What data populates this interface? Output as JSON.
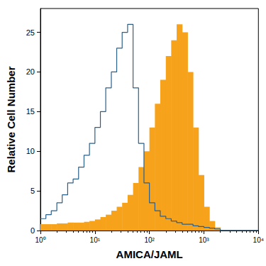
{
  "chart_data": {
    "type": "histogram",
    "x_label": "AMICA/JAML",
    "y_label": "Relative Cell Number",
    "log": "x",
    "bins": [
      1,
      1.26,
      1.58,
      2,
      2.51,
      3.16,
      3.98,
      5.01,
      6.31,
      7.94,
      10,
      12.6,
      15.8,
      20,
      25.1,
      31.6,
      39.8,
      50.1,
      63.1,
      79.4,
      100,
      126,
      158,
      200,
      251,
      316,
      398,
      501,
      631,
      794,
      1000,
      1260,
      1580,
      2000,
      2510,
      3160,
      3980,
      5010,
      6310,
      7940,
      10000
    ],
    "series": [
      {
        "type": "bar",
        "color": "#f7a21b",
        "values": [
          0.8,
          0.8,
          0.8,
          0.9,
          0.9,
          1,
          1,
          1,
          1.1,
          1.2,
          1.4,
          1.7,
          2,
          2.5,
          3,
          3.5,
          4.5,
          6,
          8,
          10,
          13,
          16,
          19,
          22,
          24,
          26,
          25,
          20,
          13,
          7,
          3,
          1.2,
          0.4,
          0,
          0,
          0,
          0,
          0,
          0,
          0
        ]
      },
      {
        "type": "line",
        "color": "#2a5f8a",
        "values": [
          1.5,
          2,
          2.5,
          3.5,
          4.5,
          6,
          6.5,
          8,
          9.5,
          11,
          13,
          15,
          18,
          20,
          23,
          25,
          26,
          18,
          11,
          6,
          3.5,
          2.5,
          1.8,
          1.5,
          1.2,
          1,
          0.8,
          0.8,
          0.6,
          0.5,
          0.4,
          0.3,
          0.2,
          0,
          0,
          0,
          0,
          0,
          0,
          0
        ]
      }
    ],
    "xlim": [
      1,
      10000
    ],
    "xticks": [
      {
        "value": 1,
        "label": "10⁰"
      },
      {
        "value": 10,
        "label": "10¹"
      },
      {
        "value": 100,
        "label": "10²"
      },
      {
        "value": 1000,
        "label": "10³"
      },
      {
        "value": 10000,
        "label": "10⁴"
      }
    ],
    "ylim": [
      0,
      28
    ],
    "yticks": [
      0,
      5,
      10,
      15,
      20,
      25
    ],
    "grid": false
  }
}
